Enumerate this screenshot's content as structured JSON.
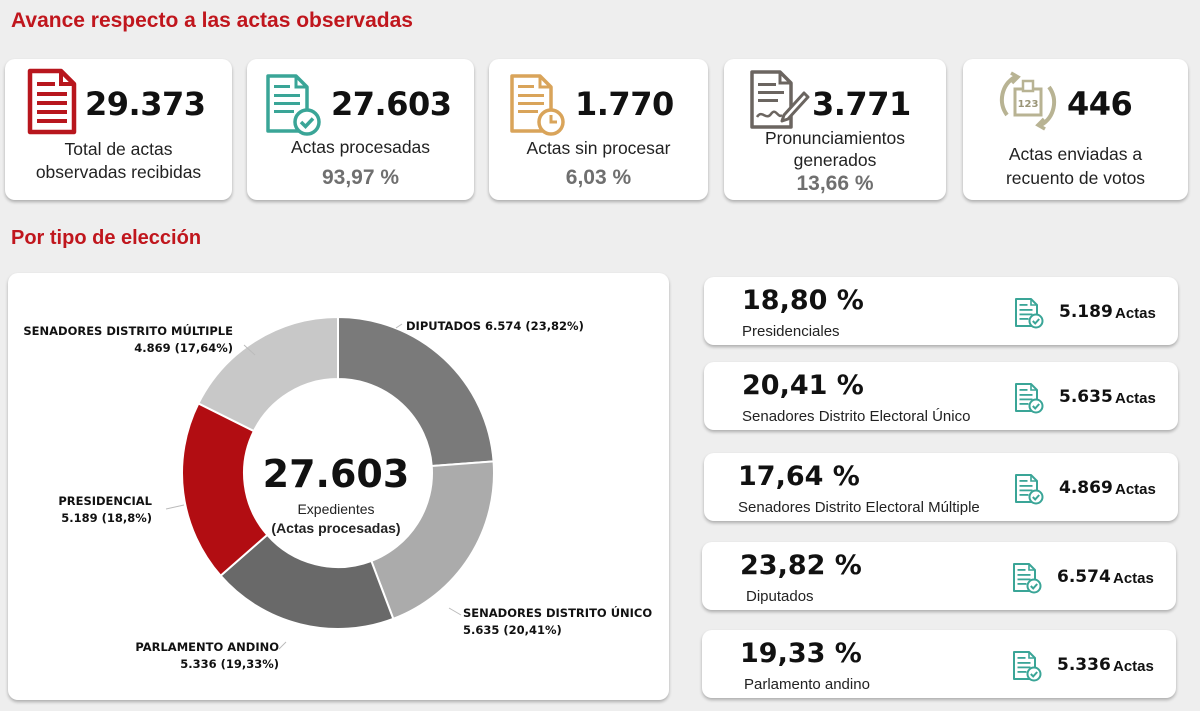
{
  "titles": {
    "progress": "Avance respecto a las actas observadas",
    "by_type": "Por tipo de elección"
  },
  "kpis": [
    {
      "value": "29.373",
      "label_line1": "Total de actas",
      "label_line2": "observadas recibidas",
      "percent": "",
      "icon": "document-icon",
      "color": "#b8161d"
    },
    {
      "value": "27.603",
      "label_line1": "Actas procesadas",
      "label_line2": "",
      "percent": "93,97 %",
      "icon": "document-check-icon",
      "color": "#3aa597"
    },
    {
      "value": "1.770",
      "label_line1": "Actas sin procesar",
      "label_line2": "",
      "percent": "6,03 %",
      "icon": "document-clock-icon",
      "color": "#d9a45a"
    },
    {
      "value": "3.771",
      "label_line1": "Pronunciamientos",
      "label_line2": "generados",
      "percent": "13,66 %",
      "icon": "document-sign-icon",
      "color": "#6b6560"
    },
    {
      "value": "446",
      "label_line1": "Actas enviadas a",
      "label_line2": "recuento de votos",
      "percent": "",
      "icon": "ballot-box-icon",
      "color": "#b8b393"
    }
  ],
  "chart_data": {
    "type": "pie",
    "donut": true,
    "center_value": "27.603",
    "center_label": "Expedientes",
    "center_sublabel": "(Actas procesadas)",
    "slices": [
      {
        "name": "DIPUTADOS",
        "value": 6574,
        "label": "DIPUTADOS 6.574 (23,82%)",
        "percent": 23.82,
        "color": "#7a7a7a"
      },
      {
        "name": "SENADORES DISTRITO ÚNICO",
        "value": 5635,
        "label_line1": "SENADORES DISTRITO ÚNICO",
        "label_line2": "5.635 (20,41%)",
        "percent": 20.41,
        "color": "#ababab"
      },
      {
        "name": "PARLAMENTO ANDINO",
        "value": 5336,
        "label_line1": "PARLAMENTO ANDINO",
        "label_line2": "5.336 (19,33%)",
        "percent": 19.33,
        "color": "#696969"
      },
      {
        "name": "PRESIDENCIAL",
        "value": 5189,
        "label_line1": "PRESIDENCIAL",
        "label_line2": "5.189 (18,8%)",
        "percent": 18.8,
        "color": "#b20d12"
      },
      {
        "name": "SENADORES DISTRITO MÚLTIPLE",
        "value": 4869,
        "label_line1": "SENADORES DISTRITO MÚLTIPLE",
        "label_line2": "4.869 (17,64%)",
        "percent": 17.64,
        "color": "#c8c8c8"
      }
    ]
  },
  "rows": [
    {
      "percent": "18,80 %",
      "name": "Presidenciales",
      "count": "5.189",
      "unit": "Actas"
    },
    {
      "percent": "20,41 %",
      "name": "Senadores Distrito Electoral Único",
      "count": "5.635",
      "unit": "Actas"
    },
    {
      "percent": "17,64 %",
      "name": "Senadores Distrito Electoral Múltiple",
      "count": "4.869",
      "unit": "Actas"
    },
    {
      "percent": "23,82 %",
      "name": "Diputados",
      "count": "6.574",
      "unit": "Actas"
    },
    {
      "percent": "19,33 %",
      "name": "Parlamento andino",
      "count": "5.336",
      "unit": "Actas"
    }
  ],
  "colors": {
    "accent": "#c0161d",
    "row_icon": "#3aa597"
  }
}
